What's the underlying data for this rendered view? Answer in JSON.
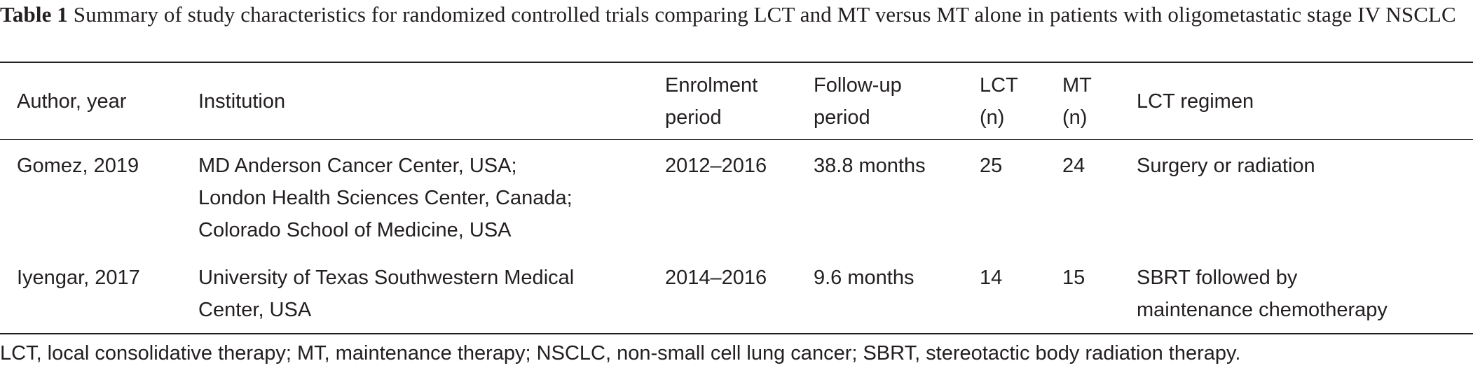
{
  "caption": {
    "label": "Table 1",
    "text": "Summary of study characteristics for randomized controlled trials comparing LCT and MT versus MT alone in patients with oligometastatic stage IV NSCLC"
  },
  "table": {
    "headers": [
      [
        "Author, year"
      ],
      [
        "Institution"
      ],
      [
        "Enrolment",
        "period"
      ],
      [
        "Follow-up",
        "period"
      ],
      [
        "LCT",
        "(n)"
      ],
      [
        "MT",
        "(n)"
      ],
      [
        "LCT regimen"
      ]
    ],
    "rows": [
      {
        "author": "Gomez, 2019",
        "institution": [
          "MD Anderson Cancer Center, USA;",
          "London Health Sciences Center, Canada;",
          "Colorado School of Medicine, USA"
        ],
        "enrolment": "2012–2016",
        "followup": "38.8 months",
        "lct_n": "25",
        "mt_n": "24",
        "regimen": [
          "Surgery or radiation"
        ]
      },
      {
        "author": "Iyengar, 2017",
        "institution": [
          "University of Texas Southwestern Medical",
          "Center, USA"
        ],
        "enrolment": "2014–2016",
        "followup": "9.6 months",
        "lct_n": "14",
        "mt_n": "15",
        "regimen": [
          "SBRT followed by",
          "maintenance chemotherapy"
        ]
      }
    ]
  },
  "footnote": "LCT, local consolidative therapy; MT, maintenance therapy; NSCLC, non-small cell lung cancer; SBRT, stereotactic body radiation therapy."
}
